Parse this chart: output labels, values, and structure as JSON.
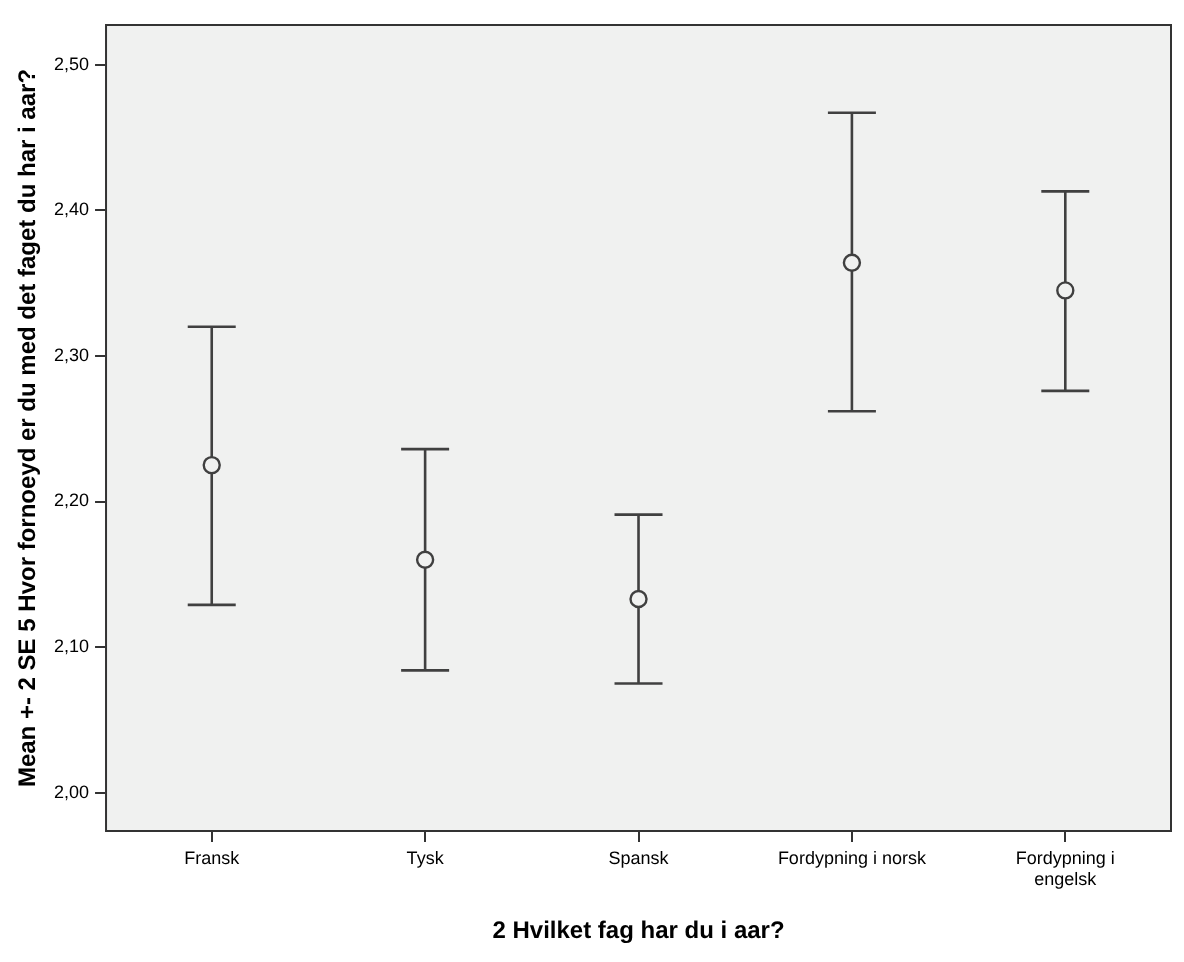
{
  "chart_data": {
    "type": "scatter",
    "xlabel": "2 Hvilket fag har du i aar?",
    "ylabel": "Mean +- 2 SE 5 Hvor fornoeyd er du med det faget du har i aar?",
    "categories": [
      "Fransk",
      "Tysk",
      "Spansk",
      "Fordypning i norsk",
      "Fordypning i engelsk"
    ],
    "values": [
      2.225,
      2.16,
      2.133,
      2.364,
      2.345
    ],
    "errors": [
      [
        2.129,
        2.32
      ],
      [
        2.084,
        2.236
      ],
      [
        2.075,
        2.191
      ],
      [
        2.262,
        2.467
      ],
      [
        2.276,
        2.413
      ]
    ],
    "color": "#404040",
    "ylim": [
      1.973,
      2.528
    ],
    "yticks": [
      {
        "value": 2.0,
        "label": "2,00"
      },
      {
        "value": 2.1,
        "label": "2,10"
      },
      {
        "value": 2.2,
        "label": "2,20"
      },
      {
        "value": 2.3,
        "label": "2,30"
      },
      {
        "value": 2.4,
        "label": "2,40"
      },
      {
        "value": 2.5,
        "label": "2,50"
      }
    ],
    "marker": "circle",
    "grid": false,
    "legend": false
  }
}
